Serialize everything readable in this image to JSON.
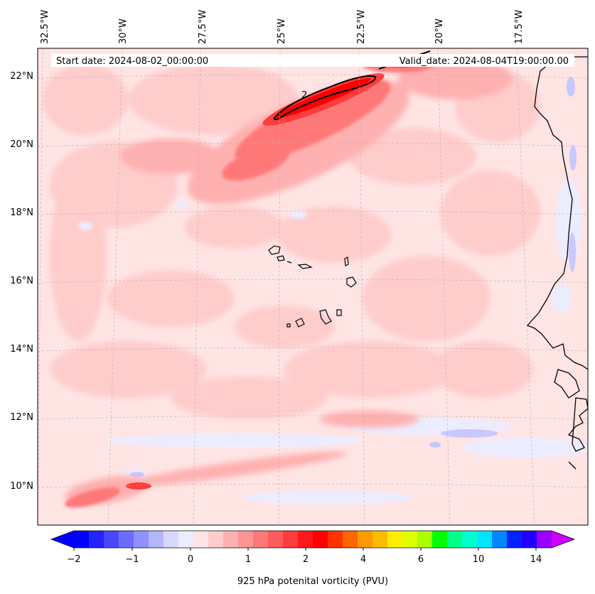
{
  "start_date_text": "Start date: 2024-08-02_00:00:00",
  "valid_date_text": "Valid_date: 2024-08-04T19:00:00.00",
  "longitude_labels": [
    "32.5°W",
    "30°W",
    "27.5°W",
    "25°W",
    "22.5°W",
    "20°W",
    "17.5°W"
  ],
  "latitude_labels": [
    "22°N",
    "20°N",
    "18°N",
    "16°N",
    "14°N",
    "12°N",
    "10°N"
  ],
  "contour_label": "2",
  "colorbar": {
    "label": "925 hPa potenital vorticity (PVU)",
    "tick_labels": [
      "−2",
      "−1",
      "0",
      "1",
      "2",
      "4",
      "6",
      "10",
      "14"
    ],
    "colors": [
      "#0000ff",
      "#2424ff",
      "#4848ff",
      "#6c6cff",
      "#9090ff",
      "#b4b4ff",
      "#d8d8ff",
      "#ececff",
      "#ffe4e4",
      "#ffcccc",
      "#ffb0b0",
      "#ff9494",
      "#ff7878",
      "#ff5c5c",
      "#ff3c3c",
      "#ff1a1a",
      "#ff0000",
      "#ff3300",
      "#ff6600",
      "#ff9900",
      "#ffbb00",
      "#ffee00",
      "#ddff00",
      "#aaff00",
      "#00ff00",
      "#00ff88",
      "#00ffcc",
      "#00e5ff",
      "#0088ff",
      "#0022ff",
      "#2200ff",
      "#9900ff"
    ],
    "under_color": "#0000ff",
    "over_color": "#cc00ff"
  },
  "colors": {
    "background_field": "#ffe4e4",
    "coastline": "#000000",
    "gridline": "#b0b0b0"
  }
}
